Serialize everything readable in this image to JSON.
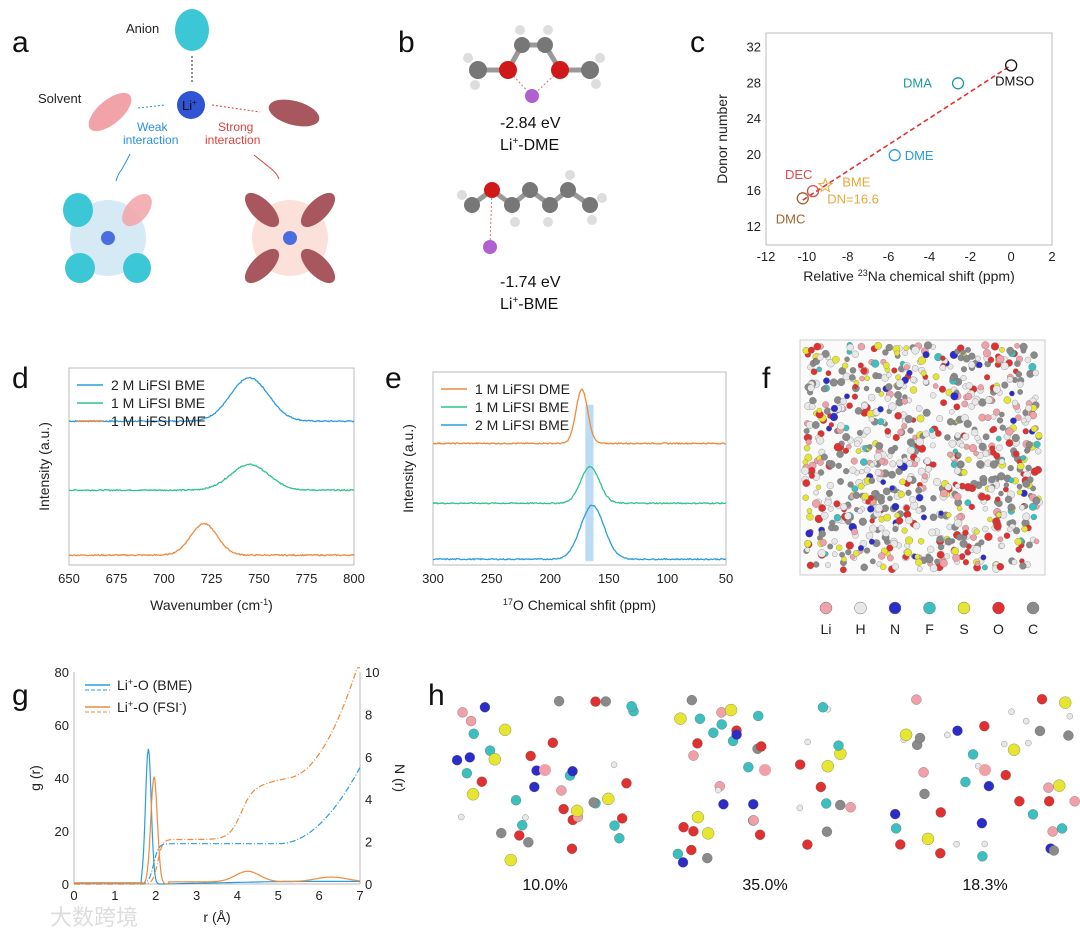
{
  "panels": {
    "a": {
      "label": "a",
      "anion": "Anion",
      "solvent": "Solvent",
      "li": "Li",
      "li_sup": "+",
      "weak": [
        "Weak",
        "interaction"
      ],
      "strong": [
        "Strong",
        "interaction"
      ],
      "colors": {
        "anion": "#3cc7d6",
        "weak_solvent": "#f2a3a8",
        "strong_solvent": "#a8575e",
        "li": "#2f55d4",
        "weak": "#2b8fe0",
        "strong": "#e0403c"
      }
    },
    "b": {
      "label": "b",
      "dme_energy": "-2.84 eV",
      "dme_name": "Li",
      "dme_sup": "+",
      "dme_suffix": "-DME",
      "bme_energy": "-1.74 eV",
      "bme_name": "Li",
      "bme_sup": "+",
      "bme_suffix": "-BME"
    },
    "f": {
      "label": "f",
      "legend": [
        {
          "el": "Li",
          "color": "#f0a0a8"
        },
        {
          "el": "H",
          "color": "#e8e8e8"
        },
        {
          "el": "N",
          "color": "#2c2cc8"
        },
        {
          "el": "F",
          "color": "#3cbfbf"
        },
        {
          "el": "S",
          "color": "#e6e632"
        },
        {
          "el": "O",
          "color": "#e03030"
        },
        {
          "el": "C",
          "color": "#8a8a8a"
        }
      ]
    },
    "h": {
      "label": "h",
      "percentages": [
        "10.0%",
        "35.0%",
        "18.3%"
      ]
    }
  },
  "chart_data": [
    {
      "id": "c",
      "label": "c",
      "type": "scatter",
      "xlabel_pre": "Relative ",
      "xlabel_sup": "23",
      "xlabel_post": "Na chemical shift (ppm)",
      "ylabel": "Donor number",
      "xlim": [
        -12,
        2
      ],
      "ylim": [
        10,
        33.6
      ],
      "xticks": [
        -12,
        -10,
        -8,
        -6,
        -4,
        -2,
        0,
        2
      ],
      "yticks": [
        12,
        16,
        20,
        24,
        28,
        32
      ],
      "points": [
        {
          "name": "DMSO",
          "x": 0,
          "y": 30,
          "color": "#111111",
          "marker": "circle"
        },
        {
          "name": "DMA",
          "x": -2.6,
          "y": 28,
          "color": "#1a9a9a",
          "marker": "circle"
        },
        {
          "name": "DME",
          "x": -5.7,
          "y": 20,
          "color": "#2a9de0",
          "marker": "circle"
        },
        {
          "name": "DEC",
          "x": -9.7,
          "y": 16,
          "color": "#e04a4a",
          "marker": "circle"
        },
        {
          "name": "DMC",
          "x": -10.2,
          "y": 15.2,
          "color": "#a0642a",
          "marker": "circle"
        },
        {
          "name": "BME",
          "x": -9.1,
          "y": 16.6,
          "color": "#e8a838",
          "marker": "star",
          "note": "DN=16.6"
        }
      ],
      "fit_line": {
        "x": [
          -10.2,
          0
        ],
        "y": [
          15,
          30
        ],
        "color": "#e83030"
      }
    },
    {
      "id": "d",
      "label": "d",
      "type": "line",
      "xlabel": "Wavenumber (cm",
      "xlabel_sup": "-1",
      "xlabel_post": ")",
      "ylabel": "Intensity (a.u.)",
      "xlim": [
        650,
        800
      ],
      "xticks": [
        650,
        675,
        700,
        725,
        750,
        775,
        800
      ],
      "series": [
        {
          "name": "2 M LiFSI BME",
          "color": "#2a9de0",
          "offset": 0.73,
          "peak": 745,
          "height": 0.22,
          "width": 10
        },
        {
          "name": "1 M LiFSI BME",
          "color": "#2ec48a",
          "offset": 0.38,
          "peak": 745,
          "height": 0.13,
          "width": 10
        },
        {
          "name": "1 M LiFSI DME",
          "color": "#ee8a3c",
          "offset": 0.05,
          "peak": 721,
          "height": 0.16,
          "width": 7
        }
      ]
    },
    {
      "id": "e",
      "label": "e",
      "type": "line",
      "xlabel_sup": "17",
      "xlabel": "O Chemical shfit (ppm)",
      "ylabel": "Intensity (a.u.)",
      "xlim": [
        300,
        50
      ],
      "xticks": [
        300,
        250,
        200,
        150,
        100,
        50
      ],
      "highlight_ppm": [
        163,
        170
      ],
      "series": [
        {
          "name": "1 M LiFSI DME",
          "color": "#ee8a3c",
          "offset": 0.63,
          "peak": 173,
          "height": 0.28,
          "width": 5
        },
        {
          "name": "1 M LiFSI BME",
          "color": "#2ec48a",
          "offset": 0.32,
          "peak": 166,
          "height": 0.19,
          "width": 8
        },
        {
          "name": "2 M LiFSI BME",
          "color": "#2a9de0",
          "offset": 0.03,
          "peak": 164,
          "height": 0.28,
          "width": 10
        }
      ]
    },
    {
      "id": "g",
      "label": "g",
      "type": "line",
      "xlabel": "r (Å)",
      "ylabel": "g (r)",
      "ylabel_right": "N (r)",
      "xlim": [
        0,
        7
      ],
      "ylim": [
        0,
        80
      ],
      "ylim_right": [
        0,
        10
      ],
      "xticks": [
        0,
        1,
        2,
        3,
        4,
        5,
        6,
        7
      ],
      "yticks": [
        0,
        20,
        40,
        60,
        80
      ],
      "yticks_right": [
        0,
        2,
        4,
        6,
        8,
        10
      ],
      "legend": [
        {
          "pre": "Li",
          "sup": "+",
          "post": "-O (BME)",
          "color": "#2a9de0"
        },
        {
          "pre": "Li",
          "sup": "+",
          "post": "-O (FSI",
          "sup2": "-",
          "post2": ")",
          "color": "#ee8a3c"
        }
      ],
      "series": [
        {
          "name": "g(r) BME",
          "color": "#2a9de0",
          "first_peak_r": 1.82,
          "first_peak_g": 51
        },
        {
          "name": "g(r) FSI",
          "color": "#ee8a3c",
          "first_peak_r": 1.96,
          "first_peak_g": 40.5,
          "second_peak_r": 4.25,
          "second_peak_g": 4
        },
        {
          "name": "N(r) BME",
          "color": "#2a9de0",
          "plateau": 1.9,
          "end_value": 5.5
        },
        {
          "name": "N(r) FSI",
          "color": "#ee8a3c",
          "plateau": 2.1,
          "step_value": 4.8,
          "end_value": 10
        }
      ]
    }
  ],
  "watermark": "大数跨境"
}
